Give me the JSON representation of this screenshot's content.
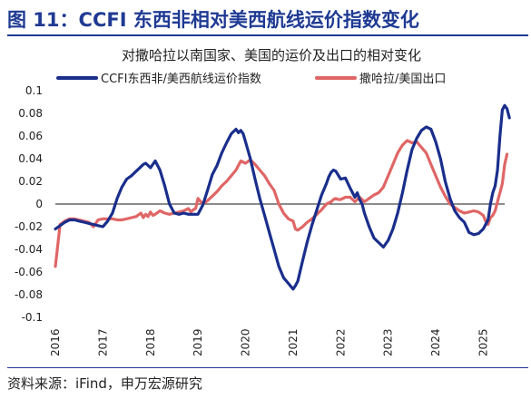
{
  "figure": {
    "title": "图 11：CCFI 东西非相对美西航线运价指数变化",
    "source": "资料来源：iFind，申万宏源研究",
    "colors": {
      "accent": "#1f3a93"
    }
  },
  "chart_data": {
    "type": "line",
    "title": "对撒哈拉以南国家、美国的运价及出口的相对变化",
    "xlabel": "",
    "ylabel": "",
    "xlim": [
      2016.0,
      2025.45
    ],
    "ylim": [
      -0.1,
      0.1
    ],
    "yticks": [
      -0.1,
      -0.08,
      -0.06,
      -0.04,
      -0.02,
      0,
      0.02,
      0.04,
      0.06,
      0.08,
      0.1
    ],
    "ytick_labels": [
      "-0.1",
      "-0.08",
      "-0.06",
      "-0.04",
      "-0.02",
      "0",
      "0.02",
      "0.04",
      "0.06",
      "0.08",
      "0.1"
    ],
    "xticks": [
      2016,
      2017,
      2018,
      2019,
      2020,
      2021,
      2022,
      2023,
      2024,
      2025
    ],
    "xtick_labels": [
      "2016",
      "2017",
      "2018",
      "2019",
      "2020",
      "2021",
      "2022",
      "2023",
      "2024",
      "2025"
    ],
    "zero_line": true,
    "grid": false,
    "legend_position": "top",
    "series": [
      {
        "name": "CCFI东西非/美西航线运价指数",
        "color": "#1a2e8c",
        "x": [
          2016.0,
          2016.1,
          2016.2,
          2016.3,
          2016.4,
          2016.5,
          2016.6,
          2016.7,
          2016.8,
          2016.9,
          2017.0,
          2017.1,
          2017.2,
          2017.3,
          2017.4,
          2017.5,
          2017.6,
          2017.7,
          2017.75,
          2017.8,
          2017.85,
          2017.9,
          2018.0,
          2018.1,
          2018.2,
          2018.3,
          2018.4,
          2018.5,
          2018.6,
          2018.7,
          2018.8,
          2018.9,
          2019.0,
          2019.1,
          2019.2,
          2019.3,
          2019.4,
          2019.5,
          2019.6,
          2019.7,
          2019.8,
          2019.85,
          2019.9,
          2019.95,
          2020.0,
          2020.1,
          2020.2,
          2020.3,
          2020.4,
          2020.5,
          2020.6,
          2020.7,
          2020.8,
          2020.9,
          2021.0,
          2021.05,
          2021.1,
          2021.2,
          2021.3,
          2021.4,
          2021.5,
          2021.6,
          2021.7,
          2021.75,
          2021.8,
          2021.85,
          2021.9,
          2022.0,
          2022.1,
          2022.2,
          2022.3,
          2022.35,
          2022.4,
          2022.45,
          2022.5,
          2022.6,
          2022.7,
          2022.8,
          2022.9,
          2023.0,
          2023.1,
          2023.2,
          2023.3,
          2023.4,
          2023.5,
          2023.6,
          2023.7,
          2023.8,
          2023.9,
          2024.0,
          2024.1,
          2024.2,
          2024.3,
          2024.4,
          2024.5,
          2024.6,
          2024.7,
          2024.8,
          2024.9,
          2025.0,
          2025.1,
          2025.15,
          2025.2,
          2025.25,
          2025.3,
          2025.35,
          2025.4
        ],
        "values": [
          -0.022,
          -0.019,
          -0.016,
          -0.014,
          -0.014,
          -0.015,
          -0.016,
          -0.017,
          -0.018,
          -0.019,
          -0.02,
          -0.015,
          -0.008,
          0.005,
          0.015,
          0.022,
          0.025,
          0.029,
          0.031,
          0.033,
          0.035,
          0.036,
          0.032,
          0.038,
          0.03,
          0.016,
          0.0,
          -0.008,
          -0.009,
          -0.008,
          -0.009,
          -0.009,
          -0.009,
          -0.001,
          0.012,
          0.026,
          0.034,
          0.045,
          0.054,
          0.062,
          0.066,
          0.063,
          0.065,
          0.062,
          0.055,
          0.04,
          0.022,
          0.005,
          -0.01,
          -0.025,
          -0.04,
          -0.055,
          -0.065,
          -0.07,
          -0.075,
          -0.072,
          -0.068,
          -0.05,
          -0.033,
          -0.018,
          -0.005,
          0.008,
          0.018,
          0.024,
          0.028,
          0.03,
          0.029,
          0.022,
          0.023,
          0.014,
          0.006,
          0.01,
          0.004,
          0.0,
          -0.008,
          -0.02,
          -0.03,
          -0.034,
          -0.038,
          -0.032,
          -0.022,
          -0.008,
          0.01,
          0.03,
          0.048,
          0.058,
          0.065,
          0.068,
          0.066,
          0.055,
          0.04,
          0.02,
          0.005,
          -0.006,
          -0.012,
          -0.016,
          -0.025,
          -0.027,
          -0.026,
          -0.022,
          -0.014,
          0.0,
          0.01,
          0.016,
          0.03,
          0.06,
          0.083
        ],
        "tail_x": [
          2025.45,
          2025.5,
          2025.55
        ],
        "tail_values": [
          0.087,
          0.084,
          0.076
        ]
      },
      {
        "name": "撒哈拉/美国出口",
        "color": "#e06666",
        "x": [
          2016.0,
          2016.1,
          2016.2,
          2016.3,
          2016.4,
          2016.5,
          2016.6,
          2016.7,
          2016.8,
          2016.9,
          2017.0,
          2017.1,
          2017.2,
          2017.3,
          2017.4,
          2017.5,
          2017.6,
          2017.7,
          2017.8,
          2017.85,
          2017.9,
          2017.95,
          2018.0,
          2018.05,
          2018.1,
          2018.2,
          2018.3,
          2018.4,
          2018.5,
          2018.6,
          2018.7,
          2018.8,
          2018.85,
          2018.9,
          2018.95,
          2019.0,
          2019.1,
          2019.2,
          2019.3,
          2019.4,
          2019.5,
          2019.6,
          2019.7,
          2019.8,
          2019.9,
          2020.0,
          2020.1,
          2020.2,
          2020.3,
          2020.4,
          2020.5,
          2020.6,
          2020.7,
          2020.8,
          2020.9,
          2021.0,
          2021.05,
          2021.1,
          2021.2,
          2021.3,
          2021.4,
          2021.5,
          2021.6,
          2021.7,
          2021.8,
          2021.85,
          2021.9,
          2021.95,
          2022.0,
          2022.1,
          2022.2,
          2022.3,
          2022.4,
          2022.5,
          2022.6,
          2022.7,
          2022.8,
          2022.9,
          2023.0,
          2023.1,
          2023.2,
          2023.3,
          2023.4,
          2023.5,
          2023.6,
          2023.7,
          2023.8,
          2023.9,
          2024.0,
          2024.1,
          2024.2,
          2024.3,
          2024.4,
          2024.5,
          2024.6,
          2024.7,
          2024.8,
          2024.9,
          2025.0,
          2025.05,
          2025.1,
          2025.15,
          2025.2,
          2025.25,
          2025.3,
          2025.35,
          2025.4
        ],
        "values": [
          -0.055,
          -0.018,
          -0.015,
          -0.013,
          -0.013,
          -0.014,
          -0.015,
          -0.016,
          -0.02,
          -0.014,
          -0.013,
          -0.013,
          -0.013,
          -0.014,
          -0.014,
          -0.013,
          -0.012,
          -0.011,
          -0.008,
          -0.012,
          -0.009,
          -0.011,
          -0.007,
          -0.01,
          -0.009,
          -0.006,
          -0.008,
          -0.009,
          -0.008,
          -0.007,
          -0.006,
          -0.004,
          -0.007,
          -0.005,
          -0.004,
          0.005,
          0.0,
          0.003,
          0.007,
          0.011,
          0.016,
          0.02,
          0.025,
          0.03,
          0.038,
          0.036,
          0.039,
          0.035,
          0.03,
          0.025,
          0.018,
          0.012,
          0.0,
          -0.008,
          -0.013,
          -0.015,
          -0.022,
          -0.023,
          -0.02,
          -0.016,
          -0.013,
          -0.009,
          -0.005,
          0.0,
          0.002,
          0.004,
          0.005,
          0.004,
          0.004,
          0.006,
          0.006,
          0.002,
          0.006,
          0.002,
          0.005,
          0.008,
          0.01,
          0.015,
          0.025,
          0.035,
          0.045,
          0.052,
          0.056,
          0.054,
          0.055,
          0.05,
          0.045,
          0.035,
          0.025,
          0.015,
          0.007,
          0.0,
          -0.003,
          -0.006,
          -0.008,
          -0.007,
          -0.006,
          -0.007,
          -0.01,
          -0.015,
          -0.018,
          -0.012,
          -0.01,
          -0.006,
          0.002,
          0.01,
          0.018
        ],
        "tail_x": [
          2025.45,
          2025.5
        ],
        "tail_values": [
          0.035,
          0.044
        ]
      }
    ]
  }
}
